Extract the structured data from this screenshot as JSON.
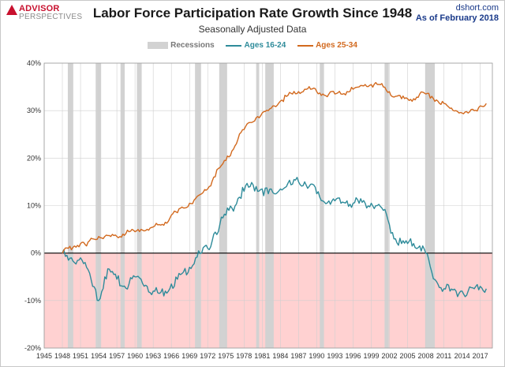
{
  "header": {
    "logo_main": "ADVISOR",
    "logo_sub": "PERSPECTIVES",
    "title": "Labor Force Participation Rate Growth Since 1948",
    "subtitle": "Seasonally Adjusted Data",
    "source_site": "dshort.com",
    "source_date": "As of February 2018"
  },
  "colors": {
    "ages_16_24": "#2e8b9a",
    "ages_25_34": "#d2691e",
    "recession": "#d2d2d2",
    "negative_region": "#ffd1d1"
  },
  "chart_data": {
    "type": "line",
    "title": "Labor Force Participation Rate Growth Since 1948",
    "subtitle": "Seasonally Adjusted Data",
    "xlabel": "",
    "ylabel": "",
    "xlim": [
      1945,
      2019
    ],
    "ylim": [
      -20,
      40
    ],
    "x_ticks": [
      1945,
      1948,
      1951,
      1954,
      1957,
      1960,
      1963,
      1966,
      1969,
      1972,
      1975,
      1978,
      1981,
      1984,
      1987,
      1990,
      1993,
      1996,
      1999,
      2002,
      2005,
      2008,
      2011,
      2014,
      2017
    ],
    "y_ticks": [
      -20,
      -10,
      0,
      10,
      20,
      30,
      40
    ],
    "y_tick_labels": [
      "-20%",
      "-10%",
      "0%",
      "10%",
      "20%",
      "30%",
      "40%"
    ],
    "grid": true,
    "legend": {
      "position": "top",
      "recessions_label": "Recessions",
      "entries": [
        "Ages 16-24",
        "Ages 25-34"
      ]
    },
    "recessions": [
      [
        1948.9,
        1949.8
      ],
      [
        1953.5,
        1954.4
      ],
      [
        1957.6,
        1958.3
      ],
      [
        1960.3,
        1961.1
      ],
      [
        1969.9,
        1970.9
      ],
      [
        1973.9,
        1975.2
      ],
      [
        1980.0,
        1980.5
      ],
      [
        1981.5,
        1982.9
      ],
      [
        1990.5,
        1991.2
      ],
      [
        2001.2,
        2001.9
      ],
      [
        2007.9,
        2009.5
      ]
    ],
    "series": [
      {
        "name": "Ages 16-24",
        "x": [
          1948,
          1949,
          1950,
          1951,
          1952,
          1953,
          1954,
          1955,
          1956,
          1957,
          1958,
          1959,
          1960,
          1961,
          1962,
          1963,
          1964,
          1965,
          1966,
          1967,
          1968,
          1969,
          1970,
          1971,
          1972,
          1973,
          1974,
          1975,
          1976,
          1977,
          1978,
          1979,
          1980,
          1981,
          1982,
          1983,
          1984,
          1985,
          1986,
          1987,
          1988,
          1989,
          1990,
          1991,
          1992,
          1993,
          1994,
          1995,
          1996,
          1997,
          1998,
          1999,
          2000,
          2001,
          2002,
          2003,
          2004,
          2005,
          2006,
          2007,
          2008,
          2009,
          2010,
          2011,
          2012,
          2013,
          2014,
          2015,
          2016,
          2017,
          2018
        ],
        "values": [
          0,
          -1.5,
          -2,
          -1,
          -3,
          -7,
          -10,
          -5,
          -4,
          -5.5,
          -7,
          -6.5,
          -5,
          -5.5,
          -7,
          -8,
          -8.5,
          -8,
          -6.5,
          -5.5,
          -4,
          -3,
          -1,
          0,
          1,
          4,
          6,
          8,
          9.5,
          11.5,
          13,
          14,
          14,
          13.5,
          12.5,
          12.5,
          13.5,
          14,
          14.5,
          15,
          15,
          14.5,
          12.5,
          11,
          11,
          11,
          10.5,
          11,
          10.5,
          10.5,
          10.5,
          10.5,
          10,
          9,
          6,
          3,
          2,
          2,
          2,
          1.5,
          0,
          -4,
          -6.5,
          -7.5,
          -8,
          -8,
          -8,
          -8,
          -7.5,
          -7,
          -7.5
        ]
      },
      {
        "name": "Ages 25-34",
        "x": [
          1948,
          1949,
          1950,
          1951,
          1952,
          1953,
          1954,
          1955,
          1956,
          1957,
          1958,
          1959,
          1960,
          1961,
          1962,
          1963,
          1964,
          1965,
          1966,
          1967,
          1968,
          1969,
          1970,
          1971,
          1972,
          1973,
          1974,
          1975,
          1976,
          1977,
          1978,
          1979,
          1980,
          1981,
          1982,
          1983,
          1984,
          1985,
          1986,
          1987,
          1988,
          1989,
          1990,
          1991,
          1992,
          1993,
          1994,
          1995,
          1996,
          1997,
          1998,
          1999,
          2000,
          2001,
          2002,
          2003,
          2004,
          2005,
          2006,
          2007,
          2008,
          2009,
          2010,
          2011,
          2012,
          2013,
          2014,
          2015,
          2016,
          2017,
          2018
        ],
        "values": [
          0,
          1,
          1.5,
          2,
          1.5,
          3,
          3.5,
          3.5,
          3.5,
          3.5,
          4,
          4.5,
          4.5,
          5,
          5,
          5.5,
          6,
          6.5,
          8,
          8.5,
          9.5,
          10.5,
          11.5,
          12.5,
          13.5,
          16,
          18,
          19.5,
          21.5,
          24,
          26,
          27.5,
          28.5,
          29.5,
          30,
          31,
          32,
          33,
          33.5,
          34,
          34.5,
          34.5,
          34,
          33.5,
          33.5,
          33.5,
          33.5,
          34,
          34.5,
          35,
          35.5,
          35.5,
          35.5,
          35,
          34,
          33,
          32.5,
          32.5,
          32.5,
          33.5,
          33.5,
          33,
          32,
          31.5,
          30.5,
          30,
          29.5,
          29.5,
          30,
          31,
          31.5
        ]
      }
    ]
  }
}
